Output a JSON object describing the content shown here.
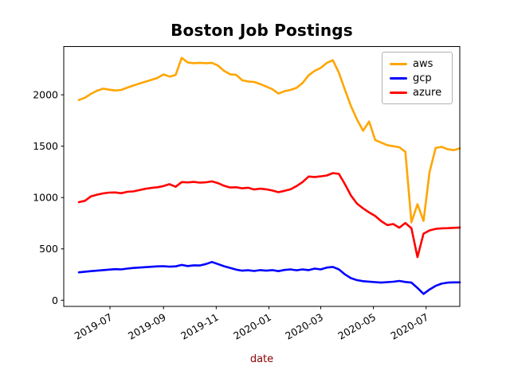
{
  "figure": {
    "title": "Boston Job Postings"
  },
  "chart_data": {
    "type": "line",
    "title": "Boston Job Postings",
    "xlabel": "date",
    "ylabel": "",
    "grid": false,
    "legend_position": "upper right",
    "x_start_date": "2019-05-26",
    "x_interval_days": 7,
    "n_points": 64,
    "x_tick_labels": [
      "2019-07",
      "2019-09",
      "2019-11",
      "2020-01",
      "2020-03",
      "2020-05",
      "2020-07"
    ],
    "x_tick_day_offsets": [
      36,
      98,
      159,
      220,
      280,
      341,
      402
    ],
    "y_ticks": [
      0,
      500,
      1000,
      1500,
      2000
    ],
    "ylim": [
      -60,
      2470
    ],
    "colors": {
      "xlabel_color": "#8B0000",
      "axis_color": "#000000",
      "tick_label_color": "#000000",
      "legend_border_color": "#b3b3b3"
    },
    "series": [
      {
        "name": "aws",
        "color": "#FFA500",
        "values": [
          1950,
          1972,
          2010,
          2040,
          2060,
          2050,
          2042,
          2048,
          2070,
          2090,
          2110,
          2128,
          2145,
          2165,
          2199,
          2178,
          2193,
          2360,
          2315,
          2308,
          2312,
          2308,
          2312,
          2285,
          2234,
          2200,
          2195,
          2142,
          2130,
          2125,
          2105,
          2080,
          2055,
          2012,
          2035,
          2048,
          2068,
          2115,
          2190,
          2234,
          2262,
          2310,
          2337,
          2215,
          2050,
          1890,
          1760,
          1650,
          1740,
          1560,
          1535,
          1510,
          1500,
          1490,
          1445,
          758,
          935,
          772,
          1250,
          1483,
          1494,
          1470,
          1462,
          1478
        ]
      },
      {
        "name": "gcp",
        "color": "#0000FF",
        "values": [
          272,
          278,
          283,
          288,
          293,
          298,
          303,
          300,
          308,
          314,
          318,
          322,
          326,
          330,
          331,
          327,
          330,
          344,
          333,
          340,
          338,
          352,
          372,
          352,
          331,
          315,
          298,
          288,
          292,
          285,
          293,
          288,
          293,
          283,
          295,
          300,
          292,
          300,
          293,
          308,
          300,
          318,
          324,
          300,
          252,
          215,
          196,
          186,
          181,
          176,
          172,
          176,
          180,
          188,
          178,
          172,
          120,
          62,
          105,
          140,
          162,
          172,
          174,
          174
        ]
      },
      {
        "name": "azure",
        "color": "#FF0000",
        "values": [
          955,
          968,
          1012,
          1028,
          1040,
          1048,
          1050,
          1042,
          1056,
          1060,
          1072,
          1085,
          1094,
          1100,
          1112,
          1130,
          1105,
          1150,
          1147,
          1152,
          1145,
          1148,
          1157,
          1140,
          1115,
          1098,
          1100,
          1090,
          1095,
          1078,
          1086,
          1080,
          1068,
          1052,
          1065,
          1080,
          1112,
          1150,
          1205,
          1200,
          1206,
          1215,
          1238,
          1230,
          1130,
          1020,
          940,
          895,
          855,
          820,
          770,
          732,
          742,
          706,
          752,
          700,
          420,
          648,
          680,
          695,
          700,
          702,
          705,
          708
        ]
      }
    ]
  }
}
